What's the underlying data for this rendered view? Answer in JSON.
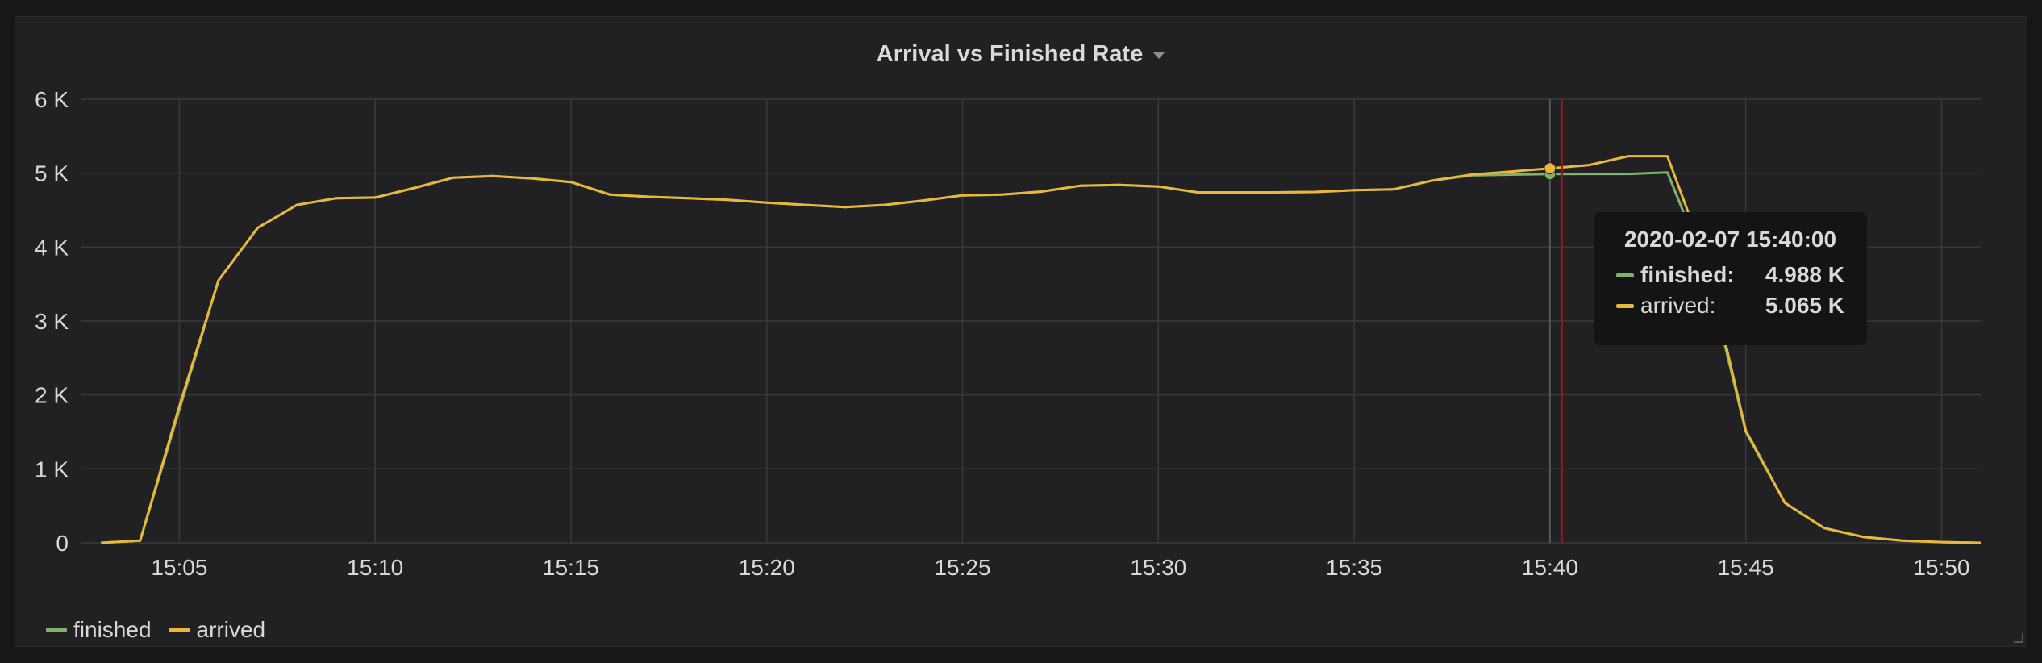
{
  "panel": {
    "title": "Arrival vs Finished Rate"
  },
  "tooltip": {
    "time": "2020-02-07 15:40:00",
    "rows": [
      {
        "name": "finished:",
        "value": "4.988 K",
        "color": "#7eb26d"
      },
      {
        "name": "arrived:",
        "value": "5.065 K",
        "color": "#eab839"
      }
    ]
  },
  "legend": [
    {
      "name": "finished",
      "color": "#7eb26d"
    },
    {
      "name": "arrived",
      "color": "#eab839"
    }
  ],
  "colors": {
    "grid": "#3a3a3e",
    "axisText": "#d8d9da",
    "cursor": "#8b1a1a"
  },
  "chart_data": {
    "type": "line",
    "title": "Arrival vs Finished Rate",
    "xlabel": "",
    "ylabel": "",
    "xlim": [
      2.5,
      51
    ],
    "ylim": [
      0,
      6000
    ],
    "xticks": [
      5,
      10,
      15,
      20,
      25,
      30,
      35,
      40,
      45,
      50
    ],
    "xtick_labels": [
      "15:05",
      "15:10",
      "15:15",
      "15:20",
      "15:25",
      "15:30",
      "15:35",
      "15:40",
      "15:45",
      "15:50"
    ],
    "yticks": [
      0,
      1000,
      2000,
      3000,
      4000,
      5000,
      6000
    ],
    "ytick_labels": [
      "0",
      "1 K",
      "2 K",
      "3 K",
      "4 K",
      "5 K",
      "6 K"
    ],
    "grid": true,
    "legend": "bottom-left",
    "cursor_x": 40.3,
    "highlight_x": 40,
    "x": [
      3,
      4,
      5,
      6,
      7,
      8,
      9,
      10,
      11,
      12,
      13,
      14,
      15,
      16,
      17,
      18,
      19,
      20,
      21,
      22,
      23,
      24,
      25,
      26,
      27,
      28,
      29,
      30,
      31,
      32,
      33,
      34,
      35,
      36,
      37,
      38,
      39,
      40,
      41,
      42,
      43,
      44,
      45,
      46,
      47,
      48,
      49,
      50,
      51
    ],
    "series": [
      {
        "name": "finished",
        "color": "#7eb26d",
        "values": [
          0,
          30,
          1800,
          3550,
          4260,
          4570,
          4660,
          4670,
          4800,
          4940,
          4960,
          4930,
          4880,
          4710,
          4680,
          4660,
          4640,
          4600,
          4570,
          4540,
          4570,
          4630,
          4700,
          4710,
          4750,
          4830,
          4840,
          4820,
          4740,
          4740,
          4740,
          4745,
          4770,
          4780,
          4900,
          4970,
          4980,
          4988,
          4990,
          4990,
          5010,
          3700,
          1500,
          540,
          200,
          80,
          30,
          10,
          0
        ]
      },
      {
        "name": "arrived",
        "color": "#eab839",
        "values": [
          0,
          30,
          1850,
          3550,
          4260,
          4570,
          4660,
          4670,
          4800,
          4940,
          4960,
          4930,
          4880,
          4710,
          4680,
          4660,
          4640,
          4600,
          4570,
          4540,
          4570,
          4630,
          4700,
          4710,
          4750,
          4830,
          4840,
          4820,
          4740,
          4740,
          4740,
          4745,
          4770,
          4780,
          4900,
          4980,
          5020,
          5065,
          5110,
          5230,
          5230,
          3800,
          1520,
          540,
          200,
          80,
          30,
          10,
          0
        ]
      }
    ]
  }
}
